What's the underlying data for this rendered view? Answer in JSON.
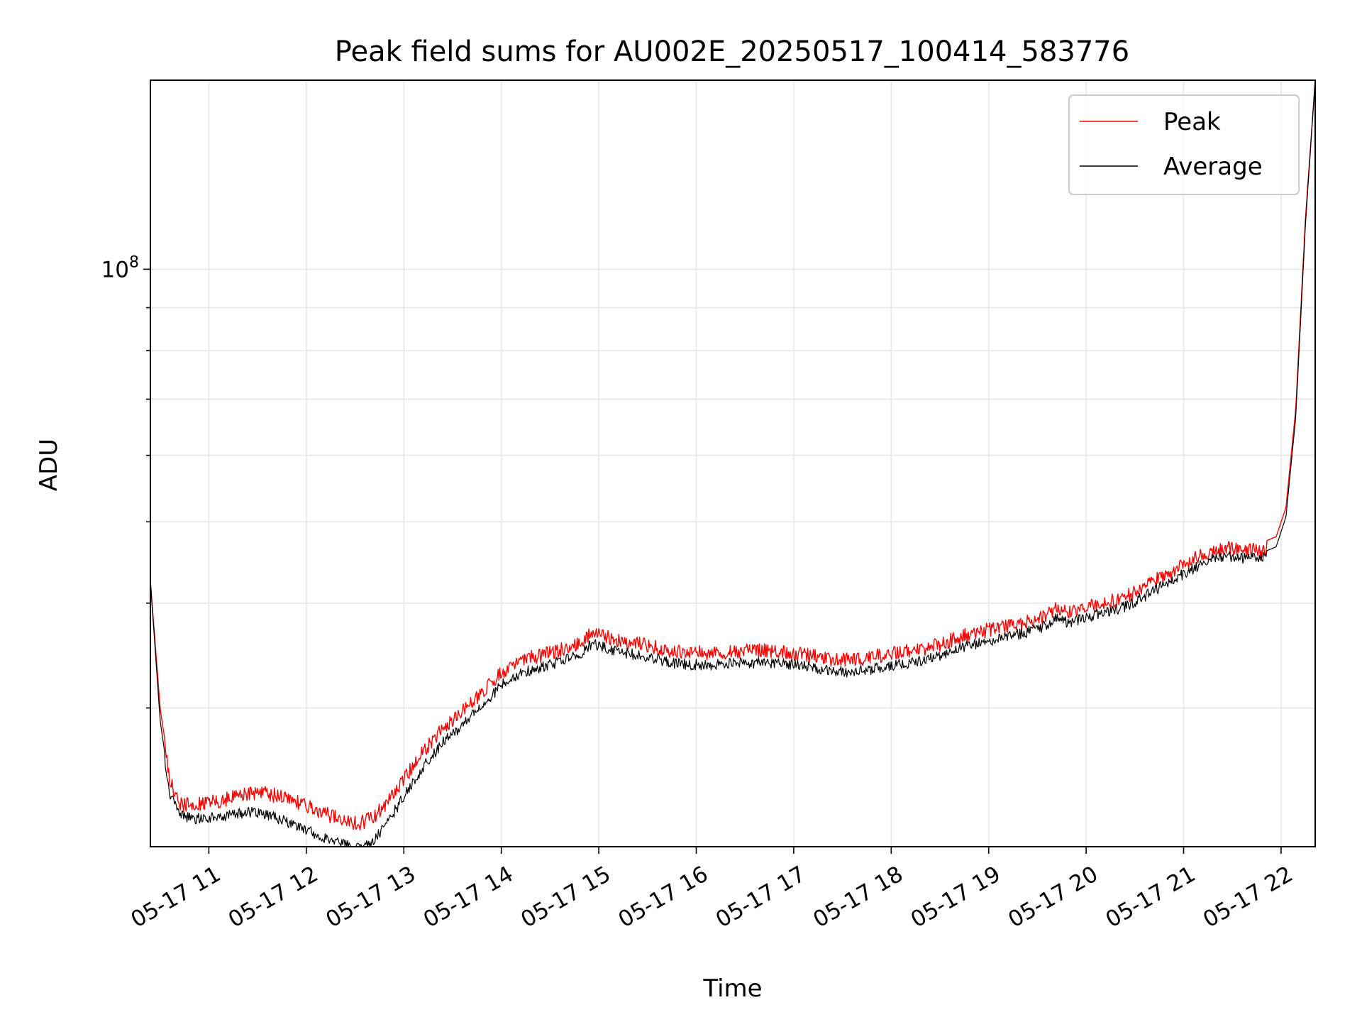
{
  "chart_data": {
    "type": "line",
    "title": "Peak field sums for AU002E_20250517_100414_583776",
    "xlabel": "Time",
    "ylabel": "ADU",
    "x_unit": "hours of day, 2025-05-17",
    "x_range": [
      10.4,
      22.35
    ],
    "y_scale": "log",
    "y_range": [
      20500000,
      168000000
    ],
    "y_tick_labels": [
      {
        "value": 100000000,
        "base": "10",
        "exp": "8"
      }
    ],
    "y_minor_ticks": [
      30000000,
      40000000,
      50000000,
      60000000,
      70000000,
      80000000,
      90000000
    ],
    "x_tick_values": [
      11,
      12,
      13,
      14,
      15,
      16,
      17,
      18,
      19,
      20,
      21,
      22
    ],
    "x_tick_labels": [
      "05-17 11",
      "05-17 12",
      "05-17 13",
      "05-17 14",
      "05-17 15",
      "05-17 16",
      "05-17 17",
      "05-17 18",
      "05-17 19",
      "05-17 20",
      "05-17 21",
      "05-17 22"
    ],
    "grid": true,
    "legend_position": "top-right",
    "series": [
      {
        "name": "Peak",
        "color": "#ff0000",
        "noise": 0.04,
        "x": [
          10.4,
          10.5,
          10.6,
          10.7,
          10.85,
          11.0,
          11.2,
          11.4,
          11.6,
          11.8,
          12.0,
          12.2,
          12.4,
          12.55,
          12.7,
          12.85,
          13.0,
          13.2,
          13.4,
          13.6,
          13.8,
          14.0,
          14.2,
          14.4,
          14.6,
          14.8,
          14.92,
          15.0,
          15.2,
          15.4,
          15.6,
          15.8,
          16.0,
          16.2,
          16.4,
          16.6,
          16.8,
          17.0,
          17.2,
          17.4,
          17.6,
          17.8,
          18.0,
          18.2,
          18.4,
          18.6,
          18.8,
          19.0,
          19.2,
          19.4,
          19.55,
          19.7,
          19.8,
          20.0,
          20.2,
          20.4,
          20.6,
          20.8,
          21.0,
          21.2,
          21.4,
          21.6,
          21.8,
          21.95,
          22.05,
          22.15,
          22.25,
          22.35
        ],
        "y": [
          42500000,
          30000000,
          25000000,
          23500000,
          23500000,
          23600000,
          23900000,
          24200000,
          24200000,
          23900000,
          23400000,
          22900000,
          22400000,
          22300000,
          22700000,
          23800000,
          25200000,
          27200000,
          29000000,
          30300000,
          32000000,
          33800000,
          35000000,
          35300000,
          35900000,
          36500000,
          37500000,
          37500000,
          36800000,
          36500000,
          36100000,
          35700000,
          35600000,
          35600000,
          35700000,
          35800000,
          35800000,
          35600000,
          35300000,
          35000000,
          34900000,
          35200000,
          35500000,
          35800000,
          36200000,
          36800000,
          37500000,
          37900000,
          38300000,
          38800000,
          39300000,
          40400000,
          39800000,
          40300000,
          40900000,
          41500000,
          42700000,
          44000000,
          45300000,
          46700000,
          47500000,
          47300000,
          47200000,
          48000000,
          52000000,
          68000000,
          115000000,
          168000000
        ]
      },
      {
        "name": "Average",
        "color": "#000000",
        "noise": 0.03,
        "x": [
          10.4,
          10.5,
          10.6,
          10.7,
          10.85,
          11.0,
          11.2,
          11.4,
          11.6,
          11.8,
          12.0,
          12.2,
          12.4,
          12.55,
          12.7,
          12.85,
          13.0,
          13.2,
          13.4,
          13.6,
          13.8,
          14.0,
          14.2,
          14.4,
          14.6,
          14.8,
          14.92,
          15.0,
          15.2,
          15.4,
          15.6,
          15.8,
          16.0,
          16.2,
          16.4,
          16.6,
          16.8,
          17.0,
          17.2,
          17.4,
          17.6,
          17.8,
          18.0,
          18.2,
          18.4,
          18.6,
          18.8,
          19.0,
          19.2,
          19.4,
          19.55,
          19.7,
          19.8,
          20.0,
          20.2,
          20.4,
          20.6,
          20.8,
          21.0,
          21.2,
          21.4,
          21.6,
          21.8,
          21.95,
          22.05,
          22.15,
          22.25,
          22.35
        ],
        "y": [
          42500000,
          29000000,
          24000000,
          22700000,
          22500000,
          22500000,
          22700000,
          22900000,
          22700000,
          22300000,
          21800000,
          21300000,
          20900000,
          20700000,
          21200000,
          22400000,
          23900000,
          25900000,
          27700000,
          29000000,
          30700000,
          32400000,
          33600000,
          34000000,
          34600000,
          35200000,
          36200000,
          36200000,
          35500000,
          35200000,
          34800000,
          34400000,
          34300000,
          34300000,
          34400000,
          34500000,
          34500000,
          34300000,
          34000000,
          33700000,
          33600000,
          33900000,
          34200000,
          34500000,
          34900000,
          35500000,
          36200000,
          36600000,
          37000000,
          37500000,
          38000000,
          39100000,
          38500000,
          39000000,
          39600000,
          40200000,
          41400000,
          42700000,
          44000000,
          45400000,
          46200000,
          46000000,
          45900000,
          46700000,
          50700000,
          66500000,
          113000000,
          168000000
        ]
      }
    ]
  }
}
